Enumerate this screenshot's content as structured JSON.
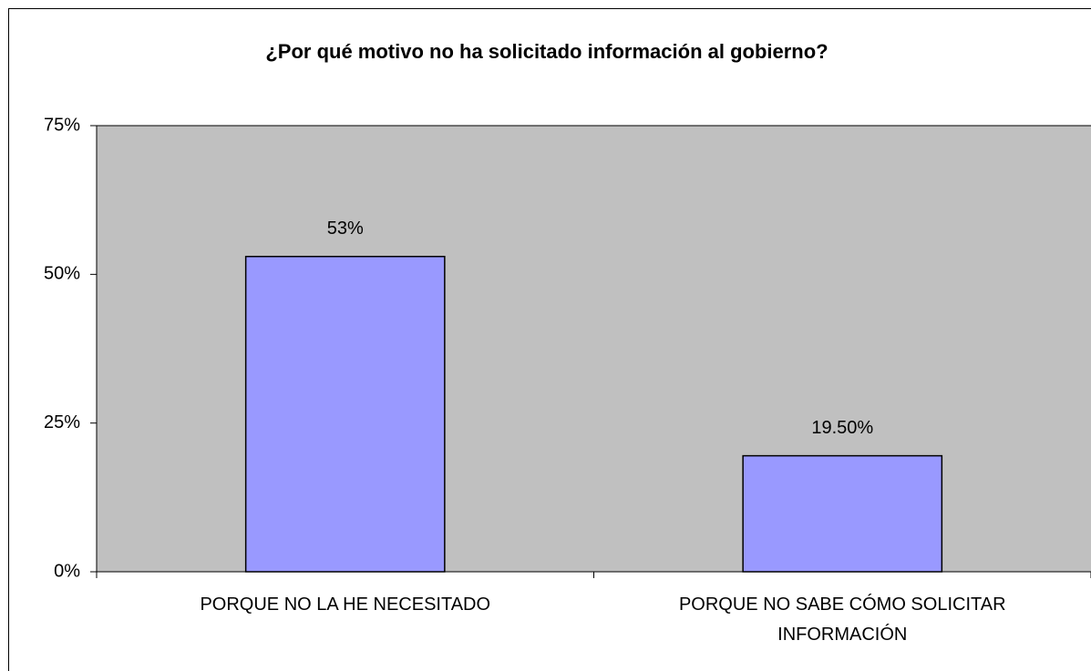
{
  "chart_data": {
    "type": "bar",
    "title": "¿Por qué motivo no ha solicitado información al gobierno?",
    "categories": [
      "PORQUE NO LA HE NECESITADO",
      "PORQUE NO SABE CÓMO SOLICITAR INFORMACIÓN"
    ],
    "values": [
      53,
      19.5
    ],
    "value_labels": [
      "53%",
      "19.50%"
    ],
    "color": "#9999ff",
    "ylim": [
      0,
      75
    ],
    "yticks": [
      {
        "value": 0,
        "label": "0%"
      },
      {
        "value": 25,
        "label": "25%"
      },
      {
        "value": 50,
        "label": "50%"
      },
      {
        "value": 75,
        "label": "75%"
      }
    ],
    "grid": false
  }
}
